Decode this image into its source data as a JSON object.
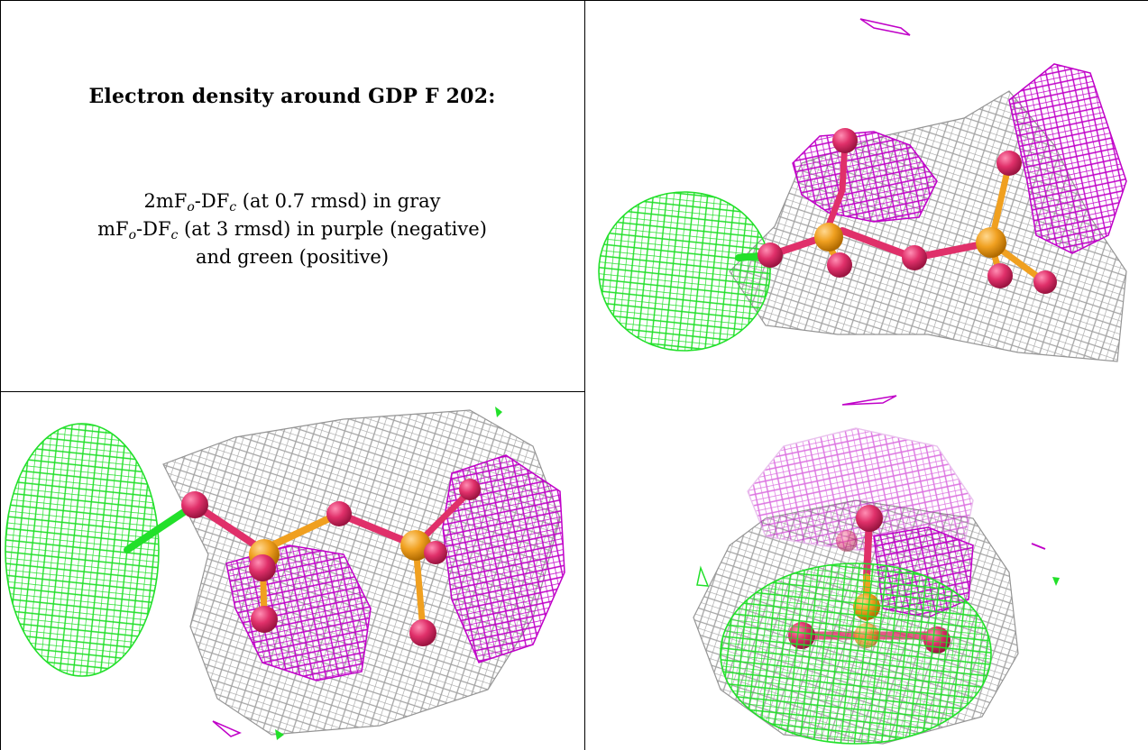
{
  "caption": {
    "title": "Electron density around GDP F 202:",
    "legend_line1": {
      "pre": "2mF",
      "sub1": "o",
      "mid": "-DF",
      "sub2": "c",
      "post": " (at 0.7 rmsd) in gray"
    },
    "legend_line2": {
      "pre": "mF",
      "sub1": "o",
      "mid": "-DF",
      "sub2": "c",
      "post": " (at 3 rmsd) in purple (negative)"
    },
    "legend_line3": "and green (positive)"
  },
  "colors": {
    "gray_mesh": "#9a9a9a",
    "purple_mesh": "#c000c8",
    "green_mesh": "#22e02a",
    "oxygen": "#e0306a",
    "phosphorus": "#f0a020"
  },
  "panels": [
    {
      "name": "view-top-right",
      "icon": "molecule-density-view"
    },
    {
      "name": "view-bottom-left",
      "icon": "molecule-density-view"
    },
    {
      "name": "view-bottom-right",
      "icon": "molecule-density-view"
    }
  ]
}
